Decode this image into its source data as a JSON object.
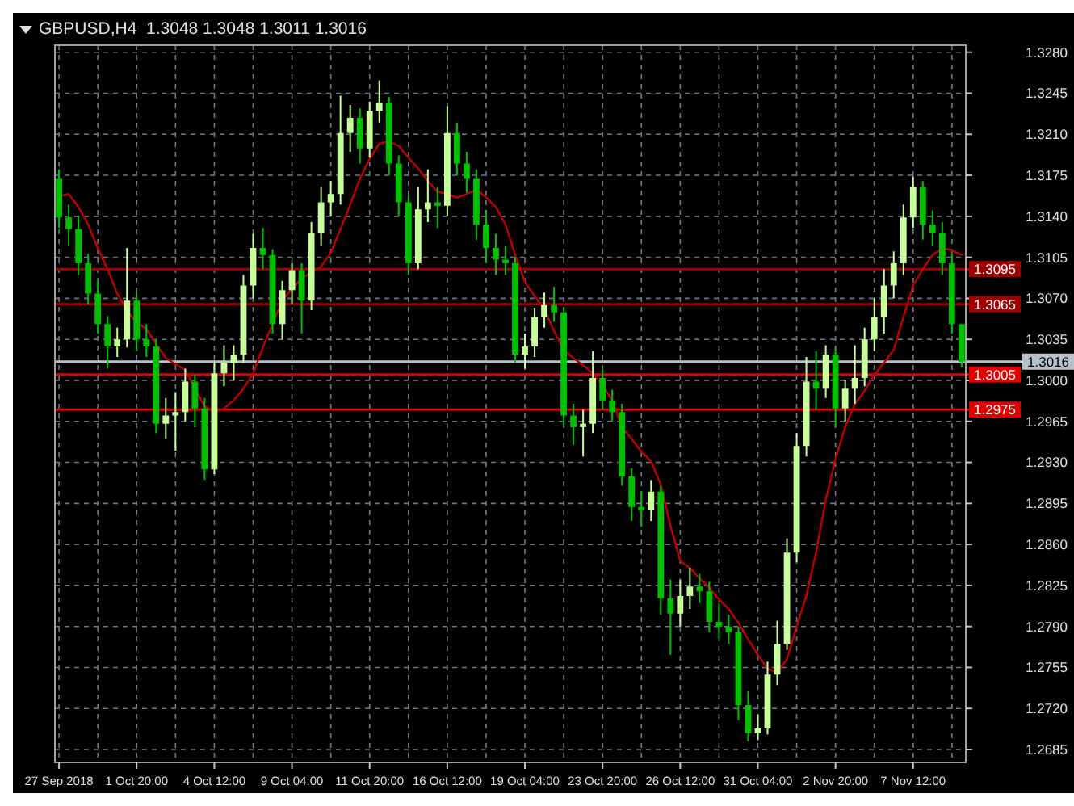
{
  "chart_data": {
    "type": "candlestick",
    "title": "GBPUSD,H4  1.3048 1.3048 1.3011 1.3016",
    "categories": [
      "27 Sep 2018",
      null,
      null,
      null,
      null,
      null,
      null,
      null,
      "1 Oct 20:00",
      null,
      null,
      null,
      null,
      null,
      null,
      null,
      "4 Oct 12:00",
      null,
      null,
      null,
      null,
      null,
      null,
      null,
      "9 Oct 04:00",
      null,
      null,
      null,
      null,
      null,
      null,
      null,
      "11 Oct 20:00",
      null,
      null,
      null,
      null,
      null,
      null,
      null,
      "16 Oct 12:00",
      null,
      null,
      null,
      null,
      null,
      null,
      null,
      "19 Oct 04:00",
      null,
      null,
      null,
      null,
      null,
      null,
      null,
      "23 Oct 20:00",
      null,
      null,
      null,
      null,
      null,
      null,
      null,
      "26 Oct 12:00",
      null,
      null,
      null,
      null,
      null,
      null,
      null,
      "31 Oct 04:00",
      null,
      null,
      null,
      null,
      null,
      null,
      null,
      "2 Nov 20:00",
      null,
      null,
      null,
      null,
      null,
      null,
      null,
      "7 Nov 12:00",
      null,
      null,
      null,
      null,
      null
    ],
    "ohlc": [
      [
        1.3172,
        1.318,
        1.313,
        1.3139
      ],
      [
        1.3139,
        1.315,
        1.3115,
        1.3129
      ],
      [
        1.3129,
        1.314,
        1.309,
        1.31
      ],
      [
        1.31,
        1.3108,
        1.3065,
        1.3074
      ],
      [
        1.3074,
        1.3085,
        1.304,
        1.3048
      ],
      [
        1.3048,
        1.3055,
        1.301,
        1.3029
      ],
      [
        1.3029,
        1.3045,
        1.302,
        1.3035
      ],
      [
        1.3035,
        1.3113,
        1.3028,
        1.3068
      ],
      [
        1.3068,
        1.3075,
        1.3025,
        1.3035
      ],
      [
        1.3035,
        1.3048,
        1.302,
        1.3029
      ],
      [
        1.3029,
        1.3035,
        1.2955,
        1.2963
      ],
      [
        1.2963,
        1.2985,
        1.295,
        1.297
      ],
      [
        1.297,
        1.299,
        1.294,
        1.2973
      ],
      [
        1.2973,
        1.301,
        1.2965,
        1.2999
      ],
      [
        1.2999,
        1.3005,
        1.296,
        1.2976
      ],
      [
        1.2976,
        1.2985,
        1.2915,
        1.2924
      ],
      [
        1.2924,
        1.3015,
        1.292,
        1.3006
      ],
      [
        1.3006,
        1.303,
        1.2995,
        1.3015
      ],
      [
        1.3015,
        1.303,
        1.3,
        1.3022
      ],
      [
        1.3022,
        1.309,
        1.3015,
        1.3081
      ],
      [
        1.3081,
        1.3125,
        1.307,
        1.3113
      ],
      [
        1.3113,
        1.313,
        1.3095,
        1.3107
      ],
      [
        1.3107,
        1.3112,
        1.304,
        1.3048
      ],
      [
        1.3048,
        1.3085,
        1.3035,
        1.3077
      ],
      [
        1.3077,
        1.31,
        1.3065,
        1.3094
      ],
      [
        1.3094,
        1.31,
        1.304,
        1.3068
      ],
      [
        1.3068,
        1.3135,
        1.306,
        1.3126
      ],
      [
        1.3126,
        1.3165,
        1.3115,
        1.3152
      ],
      [
        1.3152,
        1.317,
        1.314,
        1.3159
      ],
      [
        1.3159,
        1.3243,
        1.315,
        1.3211
      ],
      [
        1.3211,
        1.3235,
        1.3195,
        1.3224
      ],
      [
        1.3224,
        1.3232,
        1.3185,
        1.3198
      ],
      [
        1.3198,
        1.3238,
        1.319,
        1.323
      ],
      [
        1.323,
        1.3256,
        1.322,
        1.3237
      ],
      [
        1.3237,
        1.3242,
        1.3175,
        1.3185
      ],
      [
        1.3185,
        1.3192,
        1.314,
        1.3152
      ],
      [
        1.3152,
        1.3158,
        1.309,
        1.31
      ],
      [
        1.31,
        1.3165,
        1.3095,
        1.3146
      ],
      [
        1.3146,
        1.318,
        1.3135,
        1.3152
      ],
      [
        1.3152,
        1.3165,
        1.313,
        1.3149
      ],
      [
        1.3149,
        1.3234,
        1.314,
        1.3211
      ],
      [
        1.3211,
        1.322,
        1.3175,
        1.3185
      ],
      [
        1.3185,
        1.3195,
        1.316,
        1.3172
      ],
      [
        1.3172,
        1.318,
        1.312,
        1.3133
      ],
      [
        1.3133,
        1.3145,
        1.31,
        1.3113
      ],
      [
        1.3113,
        1.3125,
        1.309,
        1.3103
      ],
      [
        1.3103,
        1.3115,
        1.309,
        1.31
      ],
      [
        1.31,
        1.3105,
        1.3015,
        1.3022
      ],
      [
        1.3022,
        1.304,
        1.301,
        1.3029
      ],
      [
        1.3029,
        1.3062,
        1.302,
        1.3054
      ],
      [
        1.3054,
        1.3075,
        1.3045,
        1.3064
      ],
      [
        1.3064,
        1.308,
        1.305,
        1.3058
      ],
      [
        1.3058,
        1.3062,
        1.296,
        1.297
      ],
      [
        1.297,
        1.298,
        1.2945,
        1.296
      ],
      [
        1.296,
        1.2975,
        1.2935,
        1.2963
      ],
      [
        1.2963,
        1.3025,
        1.2955,
        1.3002
      ],
      [
        1.3002,
        1.301,
        1.2975,
        1.2983
      ],
      [
        1.2983,
        1.2992,
        1.2965,
        1.2973
      ],
      [
        1.2973,
        1.298,
        1.291,
        1.2918
      ],
      [
        1.2918,
        1.2925,
        1.288,
        1.2892
      ],
      [
        1.2892,
        1.2905,
        1.2875,
        1.2889
      ],
      [
        1.2889,
        1.2915,
        1.288,
        1.2905
      ],
      [
        1.2905,
        1.291,
        1.28,
        1.2814
      ],
      [
        1.2814,
        1.283,
        1.2766,
        1.2801
      ],
      [
        1.2801,
        1.283,
        1.279,
        1.2816
      ],
      [
        1.2816,
        1.284,
        1.2805,
        1.2824
      ],
      [
        1.2824,
        1.2835,
        1.281,
        1.282
      ],
      [
        1.282,
        1.2828,
        1.2785,
        1.2794
      ],
      [
        1.2794,
        1.281,
        1.278,
        1.279
      ],
      [
        1.279,
        1.28,
        1.2775,
        1.2785
      ],
      [
        1.2785,
        1.279,
        1.271,
        1.2723
      ],
      [
        1.2723,
        1.2735,
        1.2692,
        1.2699
      ],
      [
        1.2699,
        1.2715,
        1.2693,
        1.2703
      ],
      [
        1.2703,
        1.276,
        1.2698,
        1.2749
      ],
      [
        1.2749,
        1.2795,
        1.274,
        1.2775
      ],
      [
        1.2775,
        1.2865,
        1.277,
        1.2853
      ],
      [
        1.2853,
        1.2955,
        1.2845,
        1.2944
      ],
      [
        1.2944,
        1.302,
        1.2935,
        1.2999
      ],
      [
        1.2999,
        1.3025,
        1.2975,
        1.2993
      ],
      [
        1.2993,
        1.303,
        1.2985,
        1.3022
      ],
      [
        1.3022,
        1.3028,
        1.296,
        1.2976
      ],
      [
        1.2976,
        1.3,
        1.2965,
        1.2993
      ],
      [
        1.2993,
        1.303,
        1.298,
        1.3002
      ],
      [
        1.3002,
        1.3045,
        1.2995,
        1.3035
      ],
      [
        1.3035,
        1.307,
        1.3025,
        1.3054
      ],
      [
        1.3054,
        1.3095,
        1.304,
        1.3081
      ],
      [
        1.3081,
        1.311,
        1.307,
        1.31
      ],
      [
        1.31,
        1.315,
        1.309,
        1.3139
      ],
      [
        1.3139,
        1.3174,
        1.313,
        1.3165
      ],
      [
        1.3165,
        1.317,
        1.312,
        1.3133
      ],
      [
        1.3133,
        1.3145,
        1.3115,
        1.3126
      ],
      [
        1.3126,
        1.3135,
        1.309,
        1.31
      ],
      [
        1.31,
        1.3108,
        1.304,
        1.3048
      ],
      [
        1.3048,
        1.3048,
        1.3011,
        1.3016
      ]
    ],
    "colors": [
      "#00c000",
      "#00c000",
      "#00c000",
      "#00c000",
      "#00c000",
      "#00c000",
      "#c8ff9a",
      "#c8ff9a",
      "#00c000",
      "#00c000",
      "#00c000",
      "#c8ff9a",
      "#c8ff9a",
      "#c8ff9a",
      "#00c000",
      "#00c000",
      "#c8ff9a",
      "#c8ff9a",
      "#c8ff9a",
      "#c8ff9a",
      "#c8ff9a",
      "#00c000",
      "#00c000",
      "#c8ff9a",
      "#c8ff9a",
      "#00c000",
      "#c8ff9a",
      "#c8ff9a",
      "#c8ff9a",
      "#c8ff9a",
      "#c8ff9a",
      "#00c000",
      "#c8ff9a",
      "#c8ff9a",
      "#00c000",
      "#00c000",
      "#00c000",
      "#c8ff9a",
      "#c8ff9a",
      "#00c000",
      "#c8ff9a",
      "#00c000",
      "#00c000",
      "#00c000",
      "#00c000",
      "#00c000",
      "#00c000",
      "#00c000",
      "#c8ff9a",
      "#c8ff9a",
      "#c8ff9a",
      "#00c000",
      "#00c000",
      "#00c000",
      "#c8ff9a",
      "#c8ff9a",
      "#00c000",
      "#00c000",
      "#00c000",
      "#00c000",
      "#00c000",
      "#c8ff9a",
      "#00c000",
      "#00c000",
      "#c8ff9a",
      "#c8ff9a",
      "#00c000",
      "#00c000",
      "#00c000",
      "#00c000",
      "#00c000",
      "#00c000",
      "#c8ff9a",
      "#c8ff9a",
      "#c8ff9a",
      "#c8ff9a",
      "#c8ff9a",
      "#c8ff9a",
      "#00c000",
      "#c8ff9a",
      "#00c000",
      "#c8ff9a",
      "#c8ff9a",
      "#c8ff9a",
      "#c8ff9a",
      "#c8ff9a",
      "#c8ff9a",
      "#c8ff9a",
      "#c8ff9a",
      "#00c000",
      "#00c000",
      "#00c000",
      "#00c000",
      "#00c000"
    ],
    "series": [
      {
        "type": "line",
        "color": "#c00000",
        "values": [
          1.3157,
          1.3159,
          1.3148,
          1.3133,
          1.3113,
          1.3095,
          1.3074,
          1.306,
          1.3049,
          1.3044,
          1.3031,
          1.3019,
          1.3014,
          1.3009,
          1.2993,
          1.2978,
          1.2973,
          1.2976,
          1.2983,
          1.2993,
          1.3006,
          1.3028,
          1.3048,
          1.3068,
          1.3078,
          1.3087,
          1.3092,
          1.3097,
          1.3109,
          1.3129,
          1.315,
          1.3172,
          1.3189,
          1.3202,
          1.3204,
          1.32,
          1.319,
          1.3181,
          1.317,
          1.3161,
          1.3159,
          1.3156,
          1.3159,
          1.3163,
          1.3156,
          1.3148,
          1.3133,
          1.3107,
          1.3084,
          1.3072,
          1.3061,
          1.3042,
          1.3026,
          1.3019,
          1.3013,
          1.3006,
          1.2996,
          1.2983,
          1.296,
          1.295,
          1.2939,
          1.2931,
          1.2911,
          1.2876,
          1.2846,
          1.284,
          1.2831,
          1.2823,
          1.2813,
          1.2805,
          1.2793,
          1.2779,
          1.2766,
          1.2754,
          1.2751,
          1.2762,
          1.279,
          1.2816,
          1.2853,
          1.2898,
          1.2933,
          1.296,
          1.298,
          1.2991,
          1.3005,
          1.3015,
          1.3026,
          1.3054,
          1.3081,
          1.3095,
          1.3107,
          1.3113,
          1.3111,
          1.3107
        ]
      }
    ],
    "ylim": [
      1.2674,
      1.3286
    ],
    "yticks": [
      {
        "value": 1.328,
        "label": "1.3280"
      },
      {
        "value": 1.3245,
        "label": "1.3245"
      },
      {
        "value": 1.321,
        "label": "1.3210"
      },
      {
        "value": 1.3175,
        "label": "1.3175"
      },
      {
        "value": 1.314,
        "label": "1.3140"
      },
      {
        "value": 1.3105,
        "label": "1.3105"
      },
      {
        "value": 1.307,
        "label": "1.3070"
      },
      {
        "value": 1.3035,
        "label": "1.3035"
      },
      {
        "value": 1.3,
        "label": "1.3000"
      },
      {
        "value": 1.2965,
        "label": "1.2965"
      },
      {
        "value": 1.293,
        "label": "1.2930"
      },
      {
        "value": 1.2895,
        "label": "1.2895"
      },
      {
        "value": 1.286,
        "label": "1.2860"
      },
      {
        "value": 1.2825,
        "label": "1.2825"
      },
      {
        "value": 1.279,
        "label": "1.2790"
      },
      {
        "value": 1.2755,
        "label": "1.2755"
      },
      {
        "value": 1.272,
        "label": "1.2720"
      },
      {
        "value": 1.2685,
        "label": "1.2685"
      }
    ],
    "grid": true,
    "ref_lines": [
      {
        "axis": "y",
        "value": 1.3095,
        "label": "1.3095",
        "color": "#a00000"
      },
      {
        "axis": "y",
        "value": 1.3065,
        "label": "1.3065",
        "color": "#a00000"
      },
      {
        "axis": "y",
        "value": 1.3016,
        "label": "1.3016",
        "color": "#b8c0c8"
      },
      {
        "axis": "y",
        "value": 1.3005,
        "label": "1.3005",
        "color": "#e00000"
      },
      {
        "axis": "y",
        "value": 1.2975,
        "label": "1.2975",
        "color": "#e00000"
      }
    ]
  }
}
